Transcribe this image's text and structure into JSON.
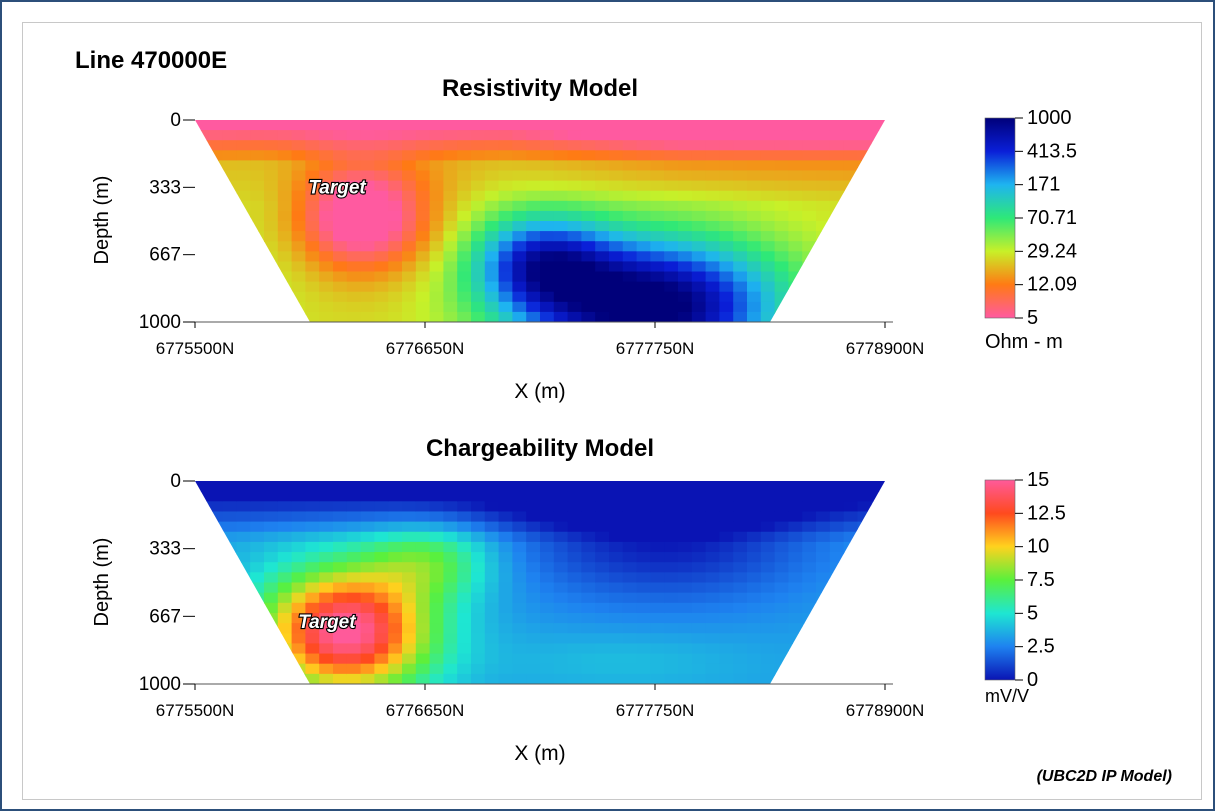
{
  "figure": {
    "line_label": "Line 470000E",
    "footnote": "(UBC2D IP Model)"
  },
  "chart_data": [
    {
      "type": "heatmap",
      "title": "Resistivity Model",
      "xlabel": "X (m)",
      "ylabel": "Depth (m)",
      "xlim": [
        6775500,
        6778900
      ],
      "ylim": [
        1000,
        0
      ],
      "x_ticks": [
        "6775500N",
        "6776650N",
        "6777750N",
        "6778900N"
      ],
      "y_ticks": [
        "0",
        "333",
        "667",
        "1000"
      ],
      "colorbar": {
        "labels": [
          "1000",
          "413.5",
          "171",
          "70.71",
          "29.24",
          "12.09",
          "5"
        ],
        "unit": "Ohm - m",
        "colors": [
          "#00007a",
          "#0a1fd8",
          "#1eb4f0",
          "#2ee878",
          "#c8f028",
          "#ff7a14",
          "#ff5aa0"
        ],
        "scale": "log"
      },
      "annotation": {
        "text": "Target",
        "x": 6776200,
        "depth": 330
      },
      "anomalies": [
        {
          "kind": "low",
          "x": 6776150,
          "depth": 470,
          "value": 5
        },
        {
          "kind": "high",
          "x": 6777650,
          "depth": 880,
          "value": 1000
        }
      ]
    },
    {
      "type": "heatmap",
      "title": "Chargeability Model",
      "xlabel": "X (m)",
      "ylabel": "Depth (m)",
      "xlim": [
        6775500,
        6778900
      ],
      "ylim": [
        1000,
        0
      ],
      "x_ticks": [
        "6775500N",
        "6776650N",
        "6777750N",
        "6778900N"
      ],
      "y_ticks": [
        "0",
        "333",
        "667",
        "1000"
      ],
      "colorbar": {
        "labels": [
          "15",
          "12.5",
          "10",
          "7.5",
          "5",
          "2.5",
          "0"
        ],
        "unit": "mV/V",
        "colors": [
          "#ff5a9a",
          "#ff4a1e",
          "#ffd21e",
          "#5af03c",
          "#1ee6d2",
          "#1e82f0",
          "#0a14b4"
        ],
        "scale": "linear"
      },
      "annotation": {
        "text": "Target",
        "x": 6776150,
        "depth": 690
      },
      "anomalies": [
        {
          "kind": "high",
          "x": 6776100,
          "depth": 760,
          "value": 13
        },
        {
          "kind": "low",
          "x": 6777700,
          "depth": 120,
          "value": 0
        }
      ]
    }
  ]
}
